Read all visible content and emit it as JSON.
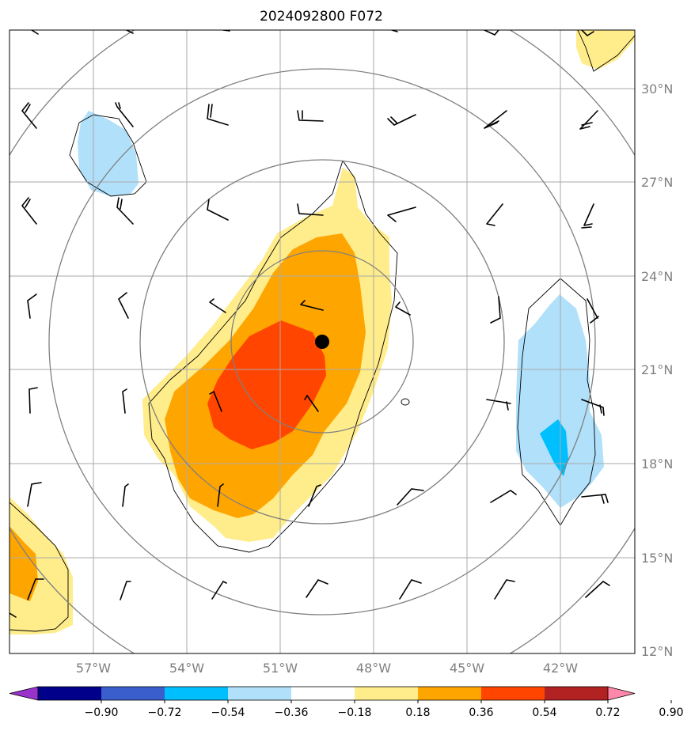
{
  "title": "2024092800 F072",
  "map": {
    "lon_range": [
      -59.6,
      -39.6
    ],
    "lat_range": [
      12,
      32
    ],
    "lon_ticks": [
      "57°W",
      "54°W",
      "51°W",
      "48°W",
      "45°W",
      "42°W"
    ],
    "lat_ticks": [
      "30°N",
      "27°N",
      "24°N",
      "21°N",
      "18°N",
      "15°N",
      "12°N"
    ],
    "grid": true,
    "storm_center": {
      "lon": -49.3,
      "lat": 21.9
    },
    "range_rings": "concentric circles around storm center",
    "colors": {
      "grid": "#aaaaaa",
      "ring": "#808080",
      "tick": "#7f7f7f"
    }
  },
  "colorbar": {
    "ticks": [
      "−0.90",
      "−0.72",
      "−0.54",
      "−0.36",
      "−0.18",
      "0.18",
      "0.36",
      "0.54",
      "0.72",
      "0.90"
    ],
    "colors": [
      "#9932cc",
      "#00008b",
      "#3a5fcd",
      "#00bfff",
      "#b0e0fa",
      "#ffffff",
      "#ffec8b",
      "#ffa500",
      "#ff4500",
      "#b22222",
      "#ff88aa"
    ],
    "extend": "both"
  }
}
